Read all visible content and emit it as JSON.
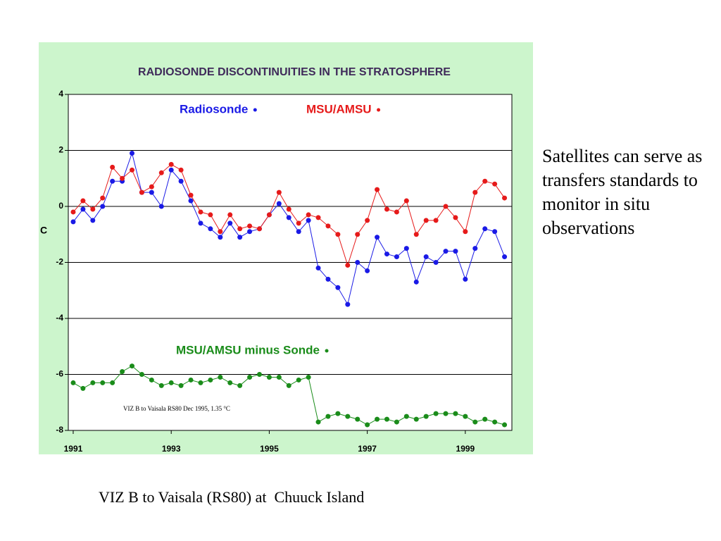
{
  "slide": {
    "text": "Satellites can serve as transfers standards to monitor in situ observations",
    "caption": "VIZ B to Vaisala (RS80) at  Chuuck Island"
  },
  "chart_data": {
    "type": "line",
    "title": "RADIOSONDE  DISCONTINUITIES  IN  THE  STRATOSPHERE",
    "y_label": "C",
    "annotation": "VIZ B to Vaisala RS80 Dec 1995, 1.35 °C",
    "x": [
      1991.0,
      1991.2,
      1991.4,
      1991.6,
      1991.8,
      1992.0,
      1992.2,
      1992.4,
      1992.6,
      1992.8,
      1993.0,
      1993.2,
      1993.4,
      1993.6,
      1993.8,
      1994.0,
      1994.2,
      1994.4,
      1994.6,
      1994.8,
      1995.0,
      1995.2,
      1995.4,
      1995.6,
      1995.8,
      1996.0,
      1996.2,
      1996.4,
      1996.6,
      1996.8,
      1997.0,
      1997.2,
      1997.4,
      1997.6,
      1997.8,
      1998.0,
      1998.2,
      1998.4,
      1998.6,
      1998.8,
      1999.0,
      1999.2,
      1999.4,
      1999.6,
      1999.8
    ],
    "series": [
      {
        "name": "Radiosonde",
        "color": "#1a1ae6",
        "values": [
          -0.55,
          -0.1,
          -0.5,
          0.0,
          0.9,
          0.9,
          1.9,
          0.5,
          0.5,
          0.0,
          1.3,
          0.9,
          0.2,
          -0.6,
          -0.8,
          -1.1,
          -0.6,
          -1.1,
          -0.9,
          -0.8,
          -0.3,
          0.1,
          -0.4,
          -0.9,
          -0.5,
          -2.2,
          -2.6,
          -2.9,
          -3.5,
          -2.0,
          -2.3,
          -1.1,
          -1.7,
          -1.8,
          -1.5,
          -2.7,
          -1.8,
          -2.0,
          -1.6,
          -1.6,
          -2.6,
          -1.5,
          -0.8,
          -0.9,
          -1.8
        ]
      },
      {
        "name": "MSU/AMSU",
        "color": "#e61a1a",
        "values": [
          -0.2,
          0.2,
          -0.1,
          0.3,
          1.4,
          1.0,
          1.3,
          0.5,
          0.7,
          1.2,
          1.5,
          1.3,
          0.4,
          -0.2,
          -0.3,
          -0.9,
          -0.3,
          -0.8,
          -0.7,
          -0.8,
          -0.3,
          0.5,
          -0.1,
          -0.6,
          -0.3,
          -0.4,
          -0.7,
          -1.0,
          -2.1,
          -1.0,
          -0.5,
          0.6,
          -0.1,
          -0.2,
          0.2,
          -1.0,
          -0.5,
          -0.5,
          0.0,
          -0.4,
          -0.9,
          0.5,
          0.9,
          0.8,
          0.3
        ]
      },
      {
        "name": "MSU/AMSU minus Sonde",
        "color": "#1a8c1a",
        "values": [
          -6.3,
          -6.5,
          -6.3,
          -6.3,
          -6.3,
          -5.9,
          -5.7,
          -6.0,
          -6.2,
          -6.4,
          -6.3,
          -6.4,
          -6.2,
          -6.3,
          -6.2,
          -6.1,
          -6.3,
          -6.4,
          -6.1,
          -6.0,
          -6.1,
          -6.1,
          -6.4,
          -6.2,
          -6.1,
          -7.7,
          -7.5,
          -7.4,
          -7.5,
          -7.6,
          -7.8,
          -7.6,
          -7.6,
          -7.7,
          -7.5,
          -7.6,
          -7.5,
          -7.4,
          -7.4,
          -7.4,
          -7.5,
          -7.7,
          -7.6,
          -7.7,
          -7.8
        ]
      }
    ],
    "xlim": [
      1990.9,
      1999.95
    ],
    "xticks": [
      1991,
      1993,
      1995,
      1997,
      1999
    ],
    "ylim": [
      -8,
      4
    ],
    "yticks": [
      -8,
      -6,
      -4,
      -2,
      0,
      2,
      4
    ],
    "grid": true,
    "background": "#ccf5cc",
    "title_color": "#3f2a5a"
  }
}
